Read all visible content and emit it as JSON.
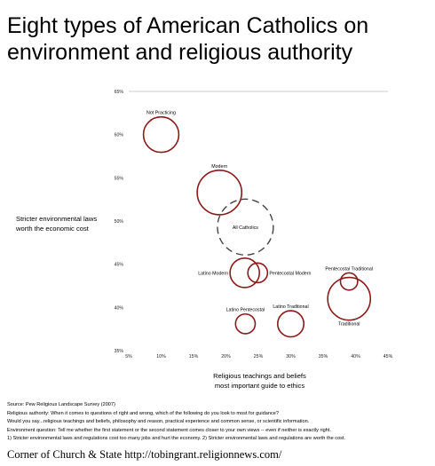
{
  "title_lines": [
    "Eight types of American Catholics on",
    "environment and religious authority"
  ],
  "chart_data": {
    "type": "scatter",
    "subtype": "bubble",
    "title": "Eight types of American Catholics on environment and religious authority",
    "xlabel": "Religious teachings and beliefs most important guide to ethics",
    "xlabel_lines": [
      "Religious teachings and beliefs",
      "most important guide to ethics"
    ],
    "ylabel": "Stricter environmental laws worth the economic cost",
    "ylabel_lines": [
      "Stricter environmental laws",
      "worth the economic cost"
    ],
    "xlim": [
      0.05,
      0.45
    ],
    "ylim": [
      0.35,
      0.65
    ],
    "x_ticks": [
      0.05,
      0.1,
      0.15,
      0.2,
      0.25,
      0.3,
      0.35,
      0.4,
      0.45
    ],
    "x_tick_labels": [
      "5%",
      "10%",
      "15%",
      "20%",
      "25%",
      "30%",
      "35%",
      "40%",
      "45%"
    ],
    "y_ticks": [
      0.35,
      0.4,
      0.45,
      0.5,
      0.55,
      0.6,
      0.65
    ],
    "y_tick_labels": [
      "35%",
      "40%",
      "45%",
      "50%",
      "55%",
      "60%",
      "65%"
    ],
    "grid": false,
    "top_reference_line": 0.65,
    "bubble_color": "#8b1a1a",
    "all_color": "#444444",
    "points": [
      {
        "label": "Not Practicing",
        "x": 0.1,
        "y": 0.6,
        "size": 0.055,
        "style": "solid",
        "label_pos": "above"
      },
      {
        "label": "Modern",
        "x": 0.19,
        "y": 0.533,
        "size": 0.087,
        "style": "solid",
        "label_pos": "above"
      },
      {
        "label": "All Catholics",
        "x": 0.23,
        "y": 0.493,
        "size": 0.137,
        "style": "dashed",
        "label_pos": "center"
      },
      {
        "label": "Latino Modern",
        "x": 0.229,
        "y": 0.44,
        "size": 0.038,
        "style": "solid",
        "label_pos": "left"
      },
      {
        "label": "Pentecostal Modern",
        "x": 0.249,
        "y": 0.44,
        "size": 0.017,
        "style": "solid",
        "label_pos": "right"
      },
      {
        "label": "Pentecostal Traditional",
        "x": 0.39,
        "y": 0.43,
        "size": 0.013,
        "style": "solid",
        "label_pos": "above"
      },
      {
        "label": "Traditional",
        "x": 0.39,
        "y": 0.41,
        "size": 0.08,
        "style": "solid",
        "label_pos": "below"
      },
      {
        "label": "Latino Pentecostal",
        "x": 0.23,
        "y": 0.381,
        "size": 0.017,
        "style": "solid",
        "label_pos": "above"
      },
      {
        "label": "Latino Traditional",
        "x": 0.3,
        "y": 0.381,
        "size": 0.03,
        "style": "solid",
        "label_pos": "above"
      }
    ]
  },
  "notes": [
    "Source: Pew Religious Landscape Survey (2007)",
    "Religious authority: When it comes to questions of right and wrong, which of the following do you look to most for guidance?",
    "Would you say...religious teachings and beliefs, philosophy and reason, practical experience and common sense, or scientific information.",
    "Environment question: Tell me whether the first statement or the second statement comes closer to your own views -- even if neither is exactly right.",
    "1) Stricter environmental laws and regulations cost too many jobs and hurt the economy. 2) Stricter environmental laws and regulations are worth the cost."
  ],
  "footer": "Corner of Church & State http://tobingrant.religionnews.com/"
}
